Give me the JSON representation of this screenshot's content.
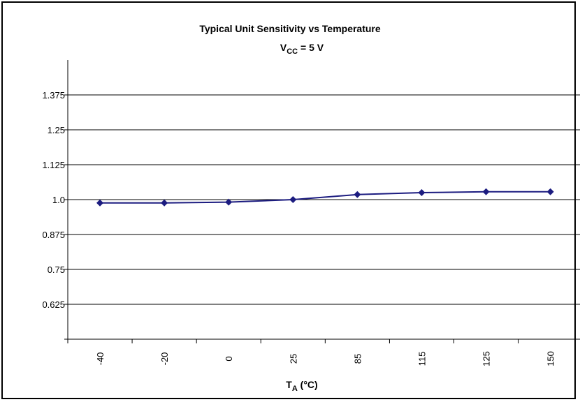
{
  "chart_data": {
    "type": "line",
    "title": "Typical Unit Sensitivity vs Temperature",
    "subtitle": {
      "prefix": "V",
      "subscript": "CC",
      "suffix": " = 5 V"
    },
    "xlabel": {
      "prefix": "T",
      "subscript": "A",
      "suffix": " (°C)"
    },
    "ylabel": "",
    "categories": [
      "-40",
      "-20",
      "0",
      "25",
      "85",
      "115",
      "125",
      "150"
    ],
    "series": [
      {
        "values": [
          0.988,
          0.988,
          0.991,
          1.0,
          1.018,
          1.025,
          1.028,
          1.028
        ]
      }
    ],
    "y_ticks": [
      "0.625",
      "0.75",
      "0.875",
      "1.0",
      "1.125",
      "1.25",
      "1.375"
    ],
    "ylim": [
      0.5,
      1.5
    ],
    "grid": true,
    "series_color": "#1c1c80",
    "grid_color": "#000000"
  }
}
